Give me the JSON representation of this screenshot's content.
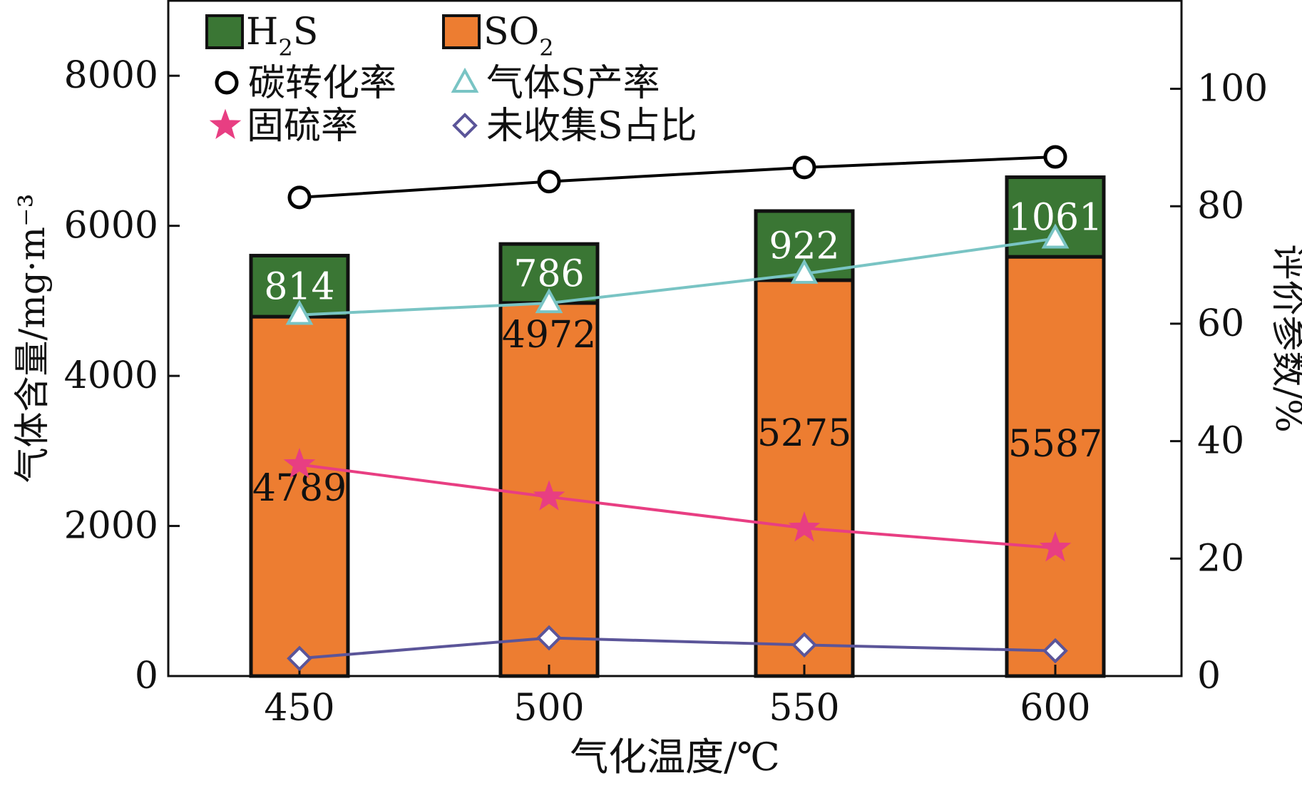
{
  "chart_data": {
    "type": "bar",
    "categories": [
      "450",
      "500",
      "550",
      "600"
    ],
    "xlabel": "气化温度/℃",
    "ylabel_left": "气体含量/mg·m⁻³",
    "ylabel_right": "评价参数/%",
    "ylim_left": [
      0,
      9000
    ],
    "ylim_right": [
      0,
      115
    ],
    "yticks_left": [
      "0",
      "2000",
      "4000",
      "6000",
      "8000"
    ],
    "yticks_right": [
      "0",
      "20",
      "40",
      "60",
      "80",
      "100"
    ],
    "stacked_bars": [
      {
        "name": "SO2",
        "name_text": "SO",
        "name_sub": "2",
        "color": "#ED7D31",
        "values": [
          4789,
          4972,
          5275,
          5587
        ],
        "labels": [
          "4789",
          "4972",
          "5275",
          "5587"
        ]
      },
      {
        "name": "H2S",
        "name_text": "H",
        "name_sub": "2",
        "name_tail": "S",
        "color": "#3A7634",
        "values": [
          814,
          786,
          922,
          1061
        ],
        "labels": [
          "814",
          "786",
          "922",
          "1061"
        ]
      }
    ],
    "lines": [
      {
        "name": "碳转化率",
        "color": "#000000",
        "marker": "circle",
        "values": [
          81.5,
          84.2,
          86.6,
          88.4
        ]
      },
      {
        "name": "气体S产率",
        "color": "#79C4C4",
        "marker": "triangle",
        "values": [
          61.5,
          63.5,
          68.5,
          74.5
        ]
      },
      {
        "name": "固硫率",
        "color": "#E83E82",
        "marker": "star",
        "values": [
          36.0,
          30.5,
          25.2,
          21.8
        ]
      },
      {
        "name": "未收集S占比",
        "color": "#5B5599",
        "marker": "diamond",
        "values": [
          3.0,
          6.5,
          5.3,
          4.3
        ]
      }
    ],
    "legend_position": "top-left",
    "grid": false
  }
}
